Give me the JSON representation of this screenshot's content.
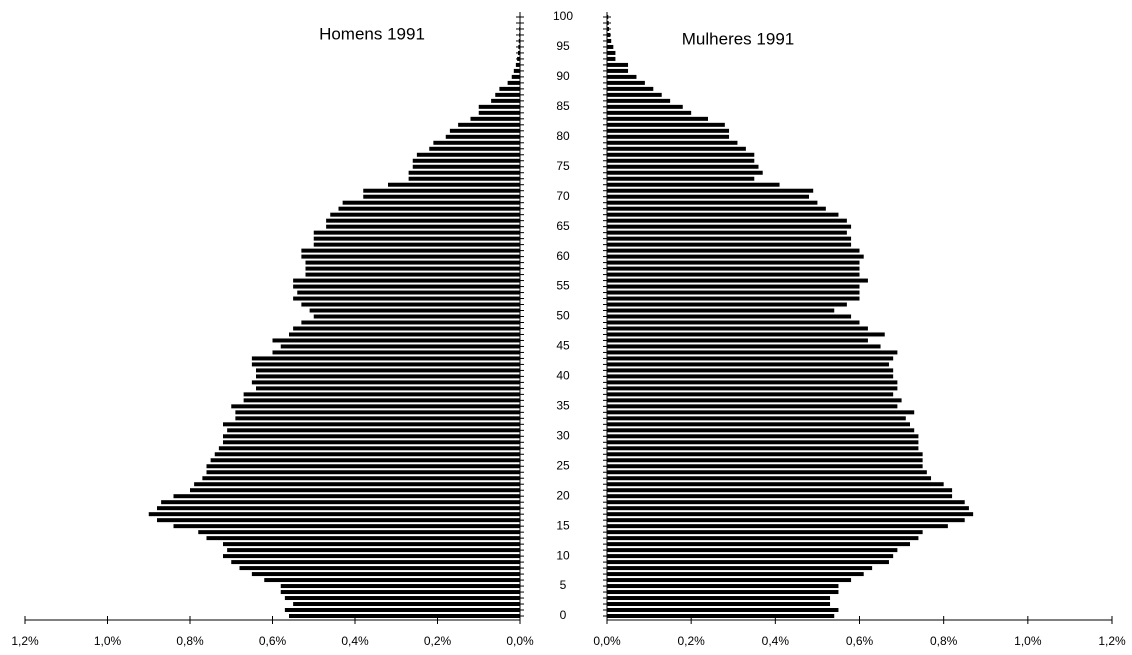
{
  "chart_data": {
    "type": "pyramid",
    "categories": [
      0,
      null,
      null,
      null,
      null,
      5,
      null,
      null,
      null,
      null,
      10,
      null,
      null,
      null,
      null,
      15,
      null,
      null,
      null,
      null,
      20,
      null,
      null,
      null,
      null,
      25,
      null,
      null,
      null,
      null,
      30,
      null,
      null,
      null,
      null,
      35,
      null,
      null,
      null,
      null,
      40,
      null,
      null,
      null,
      null,
      45,
      null,
      null,
      null,
      null,
      50,
      null,
      null,
      null,
      null,
      55,
      null,
      null,
      null,
      null,
      60,
      null,
      null,
      null,
      null,
      65,
      null,
      null,
      null,
      null,
      70,
      null,
      null,
      null,
      null,
      75,
      null,
      null,
      null,
      null,
      80,
      null,
      null,
      null,
      null,
      85,
      null,
      null,
      null,
      null,
      90,
      null,
      null,
      null,
      null,
      95,
      null,
      null,
      null,
      null,
      100
    ],
    "series": [
      {
        "name": "Homens 1991",
        "color": "#000000",
        "side": "left",
        "values": [
          0.56,
          0.57,
          0.55,
          0.57,
          0.58,
          0.58,
          0.62,
          0.65,
          0.68,
          0.7,
          0.72,
          0.71,
          0.72,
          0.76,
          0.78,
          0.84,
          0.88,
          0.9,
          0.88,
          0.87,
          0.84,
          0.8,
          0.79,
          0.77,
          0.76,
          0.76,
          0.75,
          0.74,
          0.73,
          0.72,
          0.72,
          0.71,
          0.72,
          0.69,
          0.69,
          0.7,
          0.67,
          0.67,
          0.64,
          0.65,
          0.64,
          0.64,
          0.65,
          0.65,
          0.6,
          0.58,
          0.6,
          0.56,
          0.55,
          0.53,
          0.5,
          0.51,
          0.53,
          0.55,
          0.54,
          0.55,
          0.55,
          0.52,
          0.52,
          0.52,
          0.53,
          0.53,
          0.5,
          0.5,
          0.5,
          0.47,
          0.47,
          0.46,
          0.44,
          0.43,
          0.38,
          0.38,
          0.32,
          0.27,
          0.27,
          0.26,
          0.26,
          0.25,
          0.22,
          0.21,
          0.18,
          0.17,
          0.15,
          0.12,
          0.1,
          0.1,
          0.07,
          0.06,
          0.05,
          0.03,
          0.02,
          0.015,
          0.01,
          0.007,
          0.005,
          0.004,
          0.003,
          0.002,
          0.002,
          0.001,
          0.001
        ]
      },
      {
        "name": "Mulheres 1991",
        "color": "#000000",
        "side": "right",
        "values": [
          0.54,
          0.55,
          0.53,
          0.53,
          0.55,
          0.55,
          0.58,
          0.61,
          0.63,
          0.67,
          0.68,
          0.69,
          0.72,
          0.74,
          0.75,
          0.81,
          0.85,
          0.87,
          0.86,
          0.85,
          0.82,
          0.82,
          0.8,
          0.77,
          0.76,
          0.75,
          0.75,
          0.75,
          0.74,
          0.74,
          0.74,
          0.73,
          0.72,
          0.71,
          0.73,
          0.69,
          0.7,
          0.68,
          0.69,
          0.69,
          0.68,
          0.68,
          0.67,
          0.68,
          0.69,
          0.65,
          0.62,
          0.66,
          0.62,
          0.6,
          0.58,
          0.54,
          0.57,
          0.6,
          0.6,
          0.6,
          0.62,
          0.6,
          0.6,
          0.6,
          0.61,
          0.6,
          0.58,
          0.58,
          0.57,
          0.58,
          0.57,
          0.55,
          0.52,
          0.5,
          0.48,
          0.49,
          0.41,
          0.35,
          0.37,
          0.36,
          0.35,
          0.35,
          0.33,
          0.31,
          0.29,
          0.29,
          0.28,
          0.24,
          0.2,
          0.18,
          0.15,
          0.13,
          0.11,
          0.09,
          0.07,
          0.05,
          0.05,
          0.02,
          0.02,
          0.015,
          0.01,
          0.008,
          0.005,
          0.004,
          0.003
        ]
      }
    ],
    "xlim": [
      0,
      1.2
    ],
    "xticks": [
      {
        "value": 0,
        "label": "0,0%"
      },
      {
        "value": 0.2,
        "label": "0,2%"
      },
      {
        "value": 0.4,
        "label": "0,4%"
      },
      {
        "value": 0.6,
        "label": "0,6%"
      },
      {
        "value": 0.8,
        "label": "0,8%"
      },
      {
        "value": 1.0,
        "label": "1,0%"
      },
      {
        "value": 1.2,
        "label": "1,2%"
      }
    ]
  }
}
